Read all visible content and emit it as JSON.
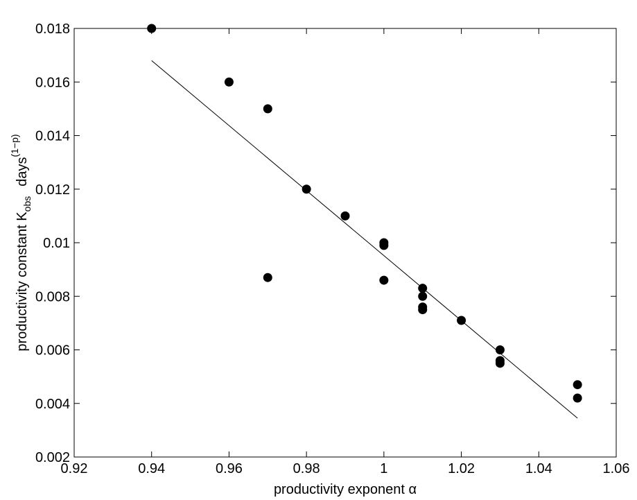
{
  "chart_data": {
    "type": "scatter",
    "xlabel": "productivity exponent α",
    "ylabel_parts": {
      "main": "productivity constant K",
      "subscript": "obs",
      "unit": "days",
      "superscript": "(1−p)"
    },
    "xlim": [
      0.92,
      1.06
    ],
    "ylim": [
      0.002,
      0.018
    ],
    "xticks": [
      0.92,
      0.94,
      0.96,
      0.98,
      1.0,
      1.02,
      1.04,
      1.06
    ],
    "xtick_labels": [
      "0.92",
      "0.94",
      "0.96",
      "0.98",
      "1",
      "1.02",
      "1.04",
      "1.06"
    ],
    "yticks": [
      0.002,
      0.004,
      0.006,
      0.008,
      0.01,
      0.012,
      0.014,
      0.016,
      0.018
    ],
    "ytick_labels": [
      "0.002",
      "0.004",
      "0.006",
      "0.008",
      "0.01",
      "0.012",
      "0.014",
      "0.016",
      "0.018"
    ],
    "grid": false,
    "points": [
      {
        "x": 0.94,
        "y": 0.018
      },
      {
        "x": 0.96,
        "y": 0.016
      },
      {
        "x": 0.97,
        "y": 0.015
      },
      {
        "x": 0.97,
        "y": 0.0087
      },
      {
        "x": 0.98,
        "y": 0.012
      },
      {
        "x": 0.99,
        "y": 0.011
      },
      {
        "x": 1.0,
        "y": 0.01
      },
      {
        "x": 1.0,
        "y": 0.0099
      },
      {
        "x": 1.0,
        "y": 0.0086
      },
      {
        "x": 1.01,
        "y": 0.0083
      },
      {
        "x": 1.01,
        "y": 0.008
      },
      {
        "x": 1.01,
        "y": 0.0076
      },
      {
        "x": 1.01,
        "y": 0.0075
      },
      {
        "x": 1.02,
        "y": 0.0071
      },
      {
        "x": 1.03,
        "y": 0.006
      },
      {
        "x": 1.03,
        "y": 0.0056
      },
      {
        "x": 1.03,
        "y": 0.0055
      },
      {
        "x": 1.05,
        "y": 0.0047
      },
      {
        "x": 1.05,
        "y": 0.0042
      }
    ],
    "fit_line": {
      "x": [
        0.94,
        1.05
      ],
      "y": [
        0.0168,
        0.00345
      ]
    }
  }
}
